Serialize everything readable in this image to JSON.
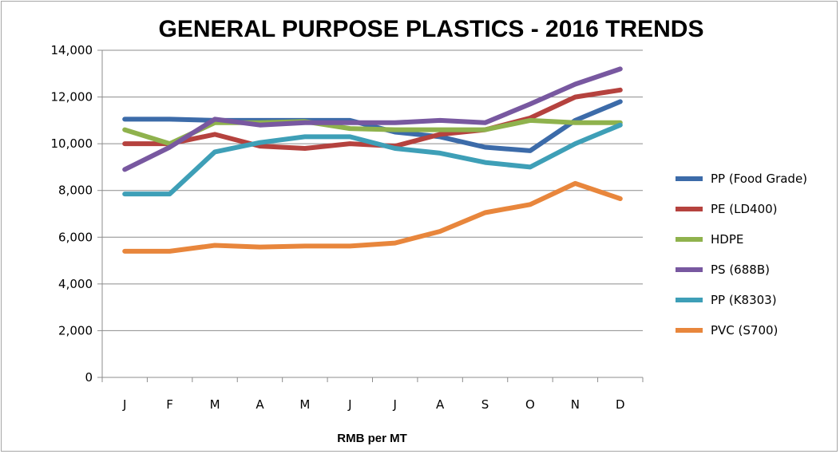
{
  "chart_data": {
    "type": "line",
    "title": "GENERAL PURPOSE PLASTICS - 2016 TRENDS",
    "xlabel": "RMB per MT",
    "ylabel": "",
    "ylim": [
      0,
      14000
    ],
    "yticks": [
      "0",
      "2,000",
      "4,000",
      "6,000",
      "8,000",
      "10,000",
      "12,000",
      "14,000"
    ],
    "ytick_values": [
      0,
      2000,
      4000,
      6000,
      8000,
      10000,
      12000,
      14000
    ],
    "categories": [
      "J",
      "F",
      "M",
      "A",
      "M",
      "J",
      "J",
      "A",
      "S",
      "O",
      "N",
      "D"
    ],
    "grid": "horizontal",
    "legend_position": "right",
    "series": [
      {
        "name": "PP (Food Grade)",
        "color": "#3c6ba9",
        "values": [
          11050,
          11050,
          11000,
          11000,
          11000,
          11000,
          10500,
          10300,
          9850,
          9700,
          11000,
          11800
        ]
      },
      {
        "name": "PE (LD400)",
        "color": "#b5423e",
        "values": [
          10000,
          10000,
          10400,
          9900,
          9800,
          10000,
          9900,
          10400,
          10600,
          11100,
          12000,
          12300
        ]
      },
      {
        "name": "HDPE",
        "color": "#8fb24d",
        "values": [
          10600,
          10000,
          10900,
          10900,
          10950,
          10650,
          10600,
          10600,
          10600,
          11000,
          10900,
          10900
        ]
      },
      {
        "name": "PS (688B)",
        "color": "#7858a0",
        "values": [
          8900,
          9850,
          11050,
          10800,
          10900,
          10900,
          10900,
          11000,
          10900,
          11700,
          12550,
          13200
        ]
      },
      {
        "name": "PP (K8303)",
        "color": "#3e9fb7",
        "values": [
          7850,
          7850,
          9650,
          10050,
          10300,
          10300,
          9800,
          9600,
          9200,
          9000,
          10000,
          10800
        ]
      },
      {
        "name": "PVC (S700)",
        "color": "#e8863c",
        "values": [
          5400,
          5400,
          5650,
          5580,
          5620,
          5620,
          5750,
          6250,
          7050,
          7400,
          8300,
          7650
        ]
      }
    ]
  }
}
